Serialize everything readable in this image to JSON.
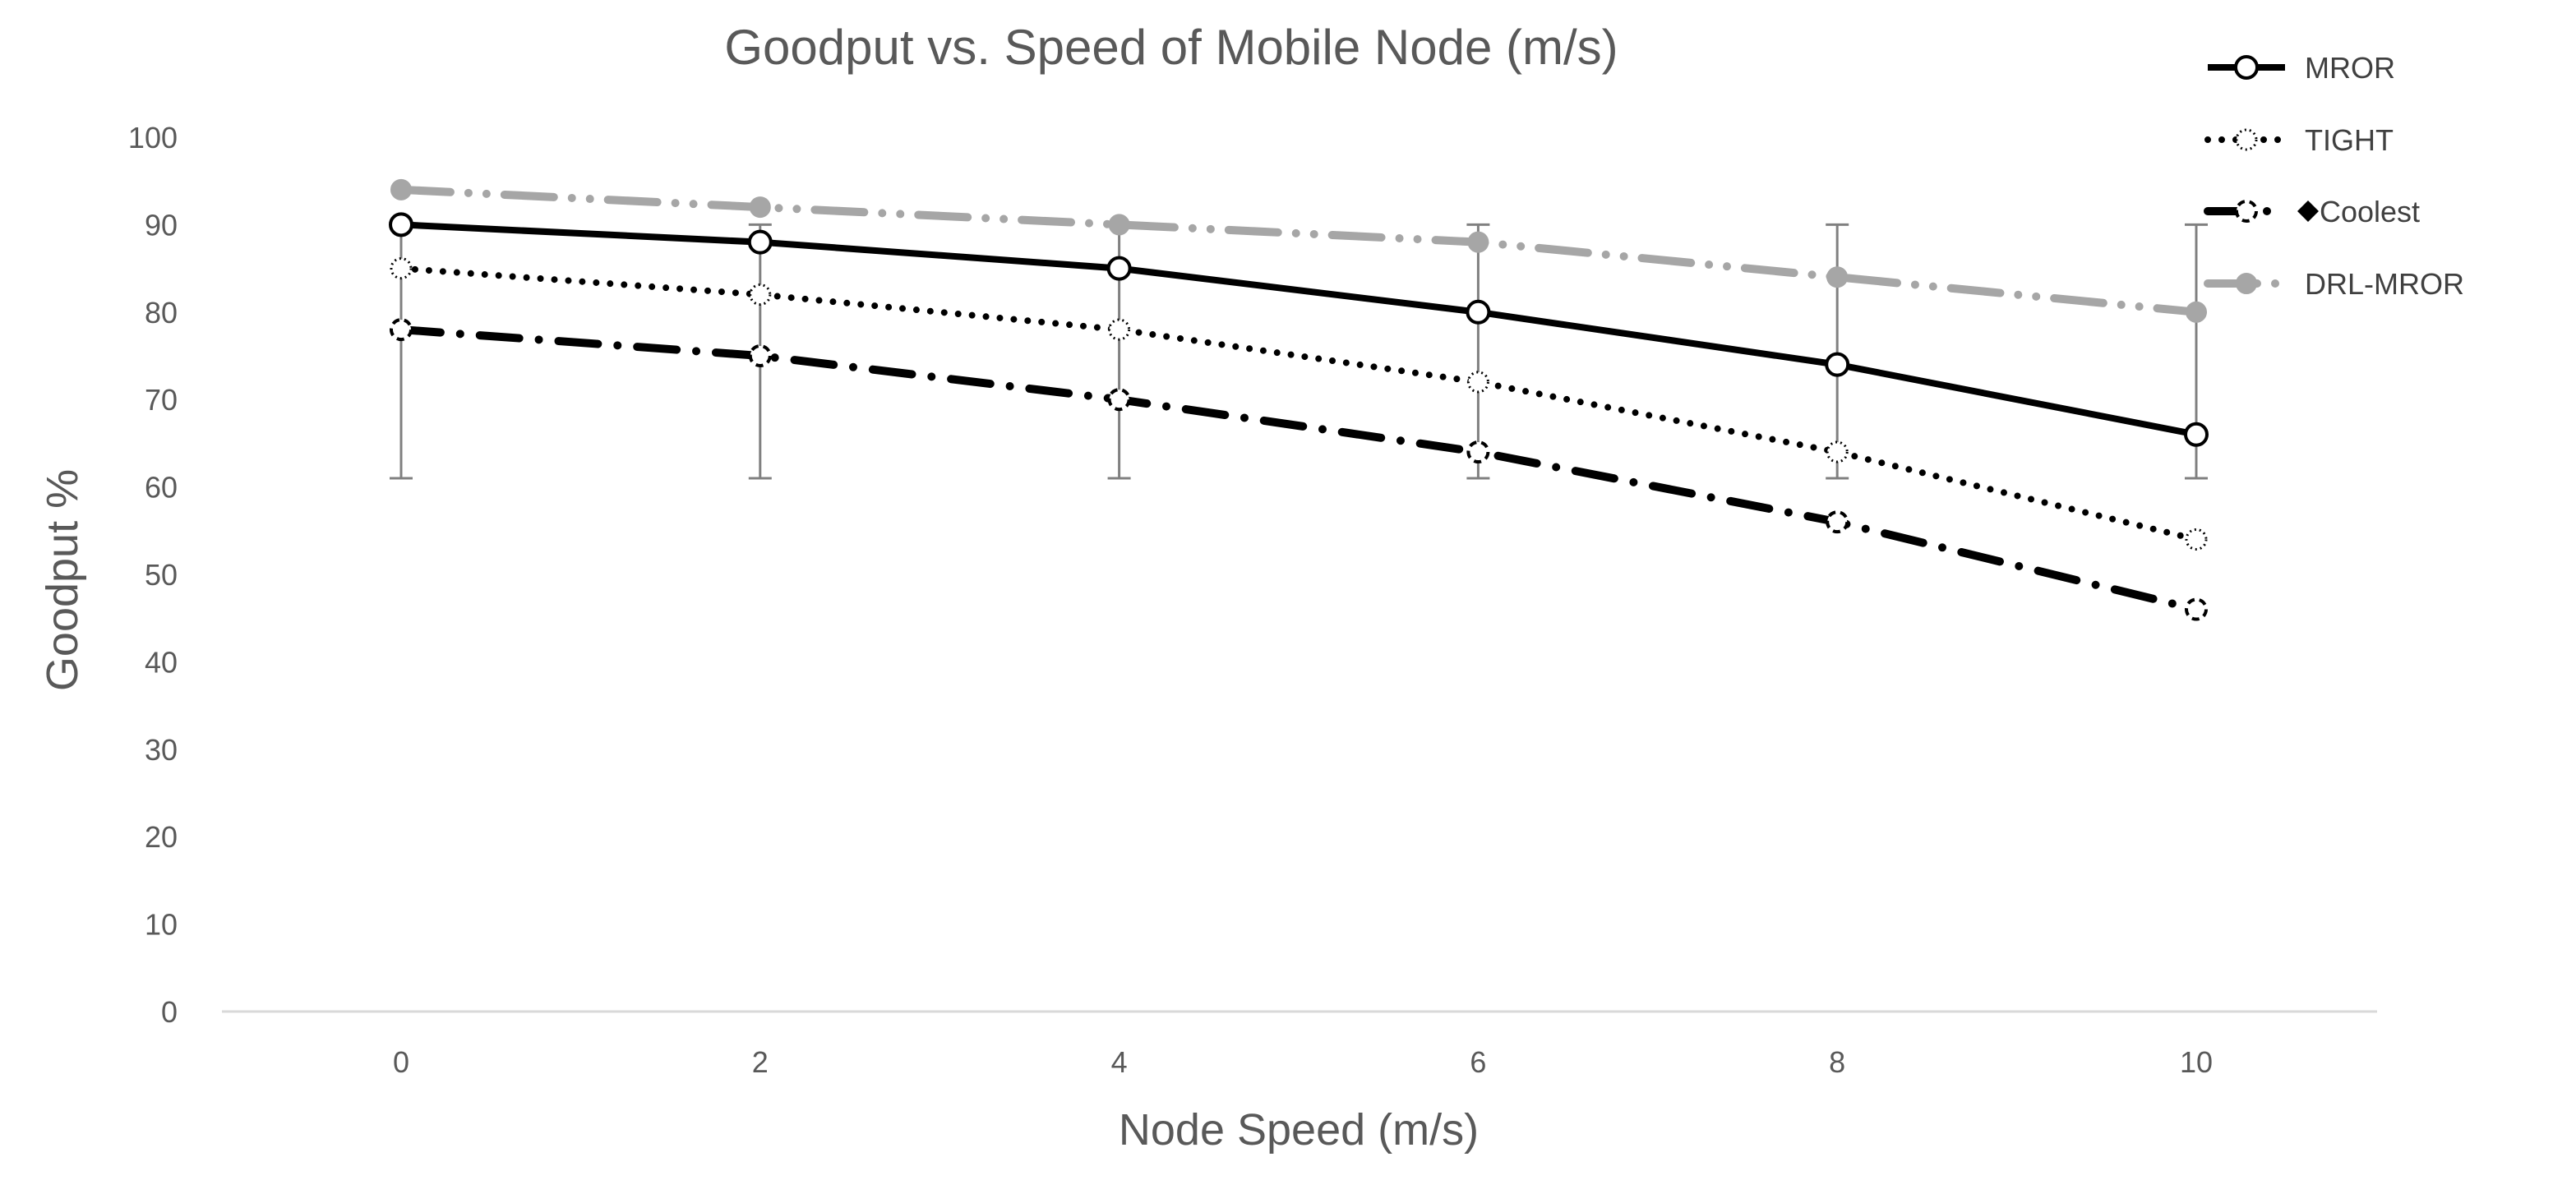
{
  "chart_data": {
    "type": "line",
    "title": "Goodput vs. Speed of Mobile Node (m/s)",
    "xlabel": "Node Speed (m/s)",
    "ylabel": "Goodput %",
    "x": [
      0,
      2,
      4,
      6,
      8,
      10
    ],
    "x_ticks": [
      "0",
      "2",
      "4",
      "6",
      "8",
      "10"
    ],
    "y_ticks": [
      "0",
      "10",
      "20",
      "30",
      "40",
      "50",
      "60",
      "70",
      "80",
      "90",
      "100"
    ],
    "ylim": [
      0,
      100
    ],
    "grid": false,
    "legend_position": "top-right",
    "series": [
      {
        "name": "MROR",
        "values": [
          90,
          88,
          85,
          80,
          74,
          66
        ],
        "color": "#000000",
        "line": "solid",
        "marker": "open-circle",
        "error_low": [
          61,
          61,
          61,
          61,
          61,
          61
        ],
        "error_high": [
          90,
          90,
          90,
          90,
          90,
          90
        ]
      },
      {
        "name": "TIGHT",
        "values": [
          85,
          82,
          78,
          72,
          64,
          54
        ],
        "color": "#000000",
        "line": "dotted",
        "marker": "dotted-circle"
      },
      {
        "name": "Coolest",
        "values": [
          78,
          75,
          70,
          64,
          56,
          46
        ],
        "color": "#000000",
        "line": "dash-dot",
        "marker": "dashed-circle",
        "legend_marker": "diamond"
      },
      {
        "name": "DRL-MROR",
        "values": [
          94,
          92,
          90,
          88,
          84,
          80
        ],
        "color": "#a6a6a6",
        "line": "dash-dot-dot",
        "marker": "filled-circle"
      }
    ]
  }
}
